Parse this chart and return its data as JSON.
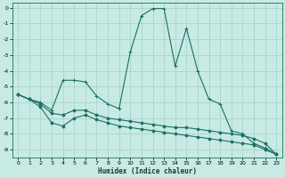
{
  "xlabel": "Humidex (Indice chaleur)",
  "bg_color": "#c8eae4",
  "grid_color": "#a8d4cc",
  "line_color": "#1a7060",
  "xlim": [
    -0.5,
    23.5
  ],
  "ylim": [
    -9.5,
    0.3
  ],
  "yticks": [
    0,
    -1,
    -2,
    -3,
    -4,
    -5,
    -6,
    -7,
    -8,
    -9
  ],
  "xticks": [
    0,
    1,
    2,
    3,
    4,
    5,
    6,
    7,
    8,
    9,
    10,
    11,
    12,
    13,
    14,
    15,
    16,
    17,
    18,
    19,
    20,
    21,
    22,
    23
  ],
  "series": [
    {
      "x": [
        0,
        1,
        2,
        3,
        4,
        5,
        6,
        7,
        8,
        9,
        10,
        11,
        12,
        13,
        14,
        15,
        16,
        17,
        18,
        19,
        20,
        21,
        22,
        23
      ],
      "y": [
        -5.5,
        -5.8,
        -6.0,
        -6.5,
        -4.6,
        -4.6,
        -4.7,
        -5.6,
        -6.1,
        -6.4,
        -2.8,
        -0.5,
        -0.05,
        -0.05,
        -3.7,
        -1.3,
        -4.0,
        -5.8,
        -6.1,
        -7.8,
        -8.0,
        -8.6,
        -8.9,
        -9.3
      ],
      "marker": "+"
    },
    {
      "x": [
        0,
        1,
        2,
        3,
        4,
        5,
        6,
        7,
        8,
        9,
        10,
        11,
        12,
        13,
        14,
        15,
        16,
        17,
        18,
        19,
        20,
        21,
        22,
        23
      ],
      "y": [
        -5.5,
        -5.8,
        -6.1,
        -6.7,
        -6.8,
        -6.5,
        -6.5,
        -6.8,
        -7.0,
        -7.1,
        -7.2,
        -7.3,
        -7.4,
        -7.5,
        -7.6,
        -7.6,
        -7.7,
        -7.8,
        -7.9,
        -8.0,
        -8.1,
        -8.3,
        -8.6,
        -9.3
      ],
      "marker": null
    },
    {
      "x": [
        0,
        1,
        2,
        3,
        4,
        5,
        6,
        7,
        8,
        9,
        10,
        11,
        12,
        13,
        14,
        15,
        16,
        17,
        18,
        19,
        20,
        21,
        22,
        23
      ],
      "y": [
        -5.5,
        -5.8,
        -6.3,
        -7.3,
        -7.5,
        -7.0,
        -6.8,
        -7.1,
        -7.3,
        -7.5,
        -7.6,
        -7.7,
        -7.8,
        -7.9,
        -8.0,
        -8.1,
        -8.2,
        -8.3,
        -8.4,
        -8.5,
        -8.6,
        -8.7,
        -9.0,
        -9.3
      ],
      "marker": null
    }
  ]
}
